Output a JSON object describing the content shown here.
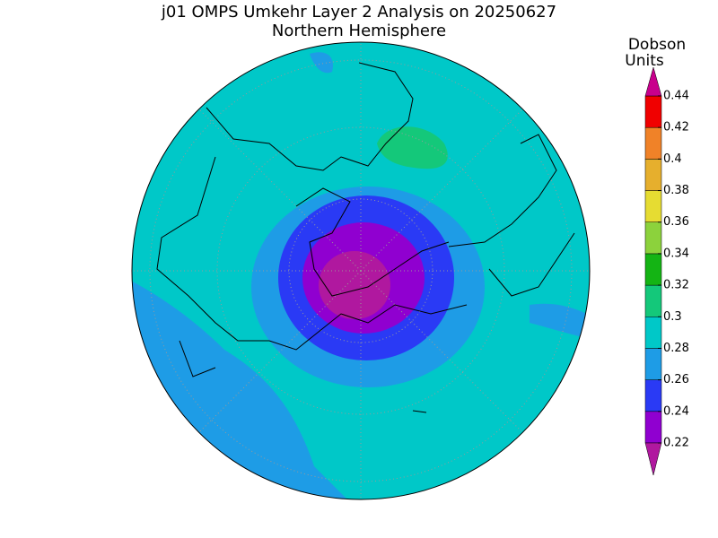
{
  "title": "j01 OMPS Umkehr Layer 2 Analysis on 20250627",
  "subtitle": "Northern Hemisphere",
  "colorbar": {
    "label": [
      "Dobson",
      "Units"
    ],
    "ticks": [
      0.22,
      0.24,
      0.26,
      0.28,
      0.3,
      0.32,
      0.34,
      0.36,
      0.38,
      0.4,
      0.42,
      0.44
    ],
    "colors": [
      "#b0189f",
      "#9000d0",
      "#2a3af5",
      "#1e9ce6",
      "#00c8c8",
      "#14c87a",
      "#14b414",
      "#8cd23c",
      "#e6dc32",
      "#e6af2d",
      "#f08228",
      "#f00000",
      "#c8008c"
    ]
  }
}
